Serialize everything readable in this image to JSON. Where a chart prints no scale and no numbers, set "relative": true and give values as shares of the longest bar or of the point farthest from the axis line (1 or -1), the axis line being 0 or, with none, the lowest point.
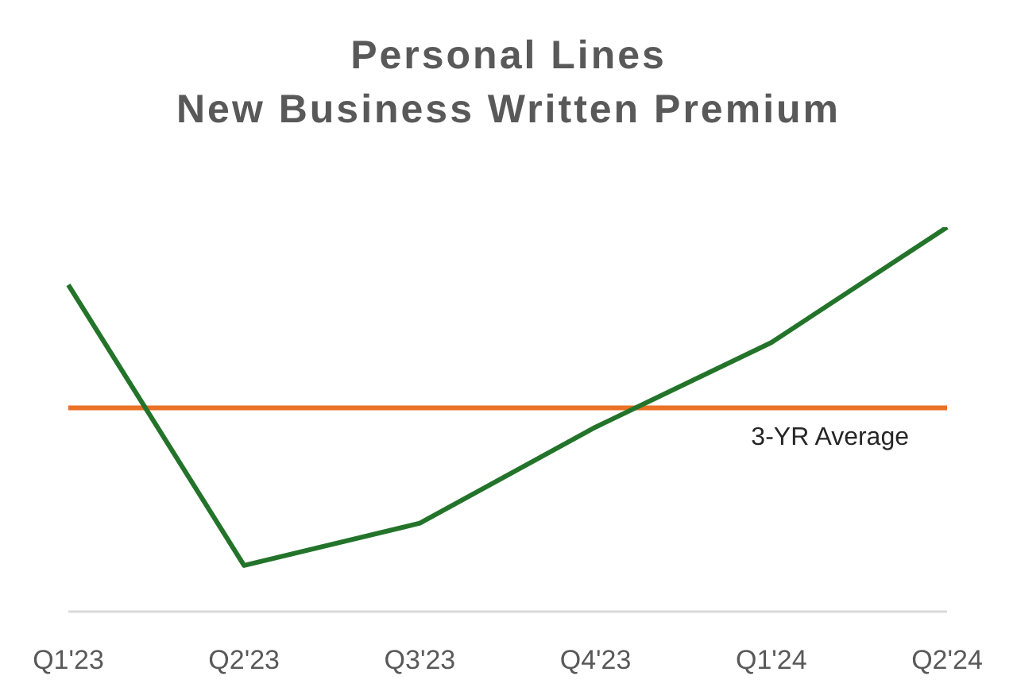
{
  "chart_data": {
    "type": "line",
    "title": "Personal Lines\nNew Business Written Premium",
    "categories": [
      "Q1'23",
      "Q2'23",
      "Q3'23",
      "Q4'23",
      "Q1'24",
      "Q2'24"
    ],
    "relative": true,
    "series": [
      {
        "color": "#23742a",
        "values": [
          0.85,
          0.12,
          0.23,
          0.48,
          0.7,
          1
        ]
      }
    ],
    "ref_lines": [
      {
        "axis": "y",
        "value": 0.53,
        "label": "3-YR Average",
        "color": "#ea7125"
      }
    ],
    "grid": false,
    "legend": false,
    "marker": "none",
    "line_style": "solid"
  }
}
